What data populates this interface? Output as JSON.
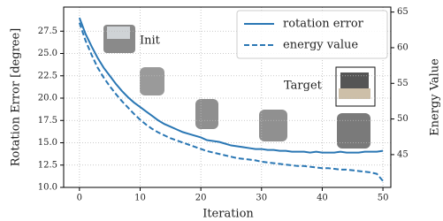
{
  "chart_data": {
    "type": "line",
    "xlabel": "Iteration",
    "ylabel": "Rotation Error [degree]",
    "y2label": "Energy Value",
    "annotations": [
      "Init",
      "Target"
    ],
    "x": [
      0,
      1,
      2,
      3,
      4,
      5,
      6,
      7,
      8,
      9,
      10,
      11,
      12,
      13,
      14,
      15,
      16,
      17,
      18,
      19,
      20,
      21,
      22,
      23,
      24,
      25,
      26,
      27,
      28,
      29,
      30,
      31,
      32,
      33,
      34,
      35,
      36,
      37,
      38,
      39,
      40,
      41,
      42,
      43,
      44,
      45,
      46,
      47,
      48,
      49,
      50
    ],
    "series": [
      {
        "name": "rotation error",
        "color": "#2a77b4",
        "linestyle": "solid",
        "values": [
          29.0,
          27.2,
          25.8,
          24.5,
          23.4,
          22.5,
          21.6,
          20.8,
          20.1,
          19.5,
          19.0,
          18.5,
          18.0,
          17.5,
          17.1,
          16.8,
          16.5,
          16.2,
          16.0,
          15.8,
          15.6,
          15.3,
          15.2,
          15.1,
          14.9,
          14.7,
          14.6,
          14.5,
          14.4,
          14.3,
          14.3,
          14.2,
          14.2,
          14.1,
          14.1,
          14.0,
          14.0,
          14.0,
          13.9,
          14.0,
          13.9,
          13.9,
          13.9,
          14.0,
          13.9,
          13.9,
          13.9,
          14.0,
          14.0,
          14.0,
          14.1
        ]
      },
      {
        "name": "energy value",
        "color": "#2a77b4",
        "linestyle": "dashed",
        "axis": "y2",
        "values": [
          63.5,
          61.0,
          59.0,
          57.2,
          55.8,
          54.6,
          53.5,
          52.5,
          51.6,
          50.7,
          49.9,
          49.2,
          48.6,
          48.1,
          47.7,
          47.3,
          47.0,
          46.7,
          46.4,
          46.1,
          45.8,
          45.5,
          45.3,
          45.1,
          44.9,
          44.7,
          44.5,
          44.4,
          44.3,
          44.2,
          44.0,
          43.9,
          43.8,
          43.7,
          43.6,
          43.5,
          43.4,
          43.4,
          43.3,
          43.2,
          43.1,
          43.1,
          43.0,
          42.9,
          42.9,
          42.8,
          42.7,
          42.6,
          42.5,
          42.3,
          41.3
        ]
      }
    ],
    "xlim": [
      -2.6,
      51.3
    ],
    "xticks": [
      0,
      10,
      20,
      30,
      40,
      50
    ],
    "ylim": [
      10,
      30.2
    ],
    "yticks": [
      {
        "value": 10,
        "label": "10.0"
      },
      {
        "value": 12.5,
        "label": "12.5"
      },
      {
        "value": 15,
        "label": "15.0"
      },
      {
        "value": 17.5,
        "label": "17.5"
      },
      {
        "value": 20,
        "label": "20.0"
      },
      {
        "value": 22.5,
        "label": "22.5"
      },
      {
        "value": 25,
        "label": "25.0"
      },
      {
        "value": 27.5,
        "label": "27.5"
      }
    ],
    "y2lim": [
      40.4,
      65.7
    ],
    "y2ticks": [
      45,
      50,
      55,
      60,
      65
    ],
    "grid": true,
    "legend": "upper right"
  }
}
